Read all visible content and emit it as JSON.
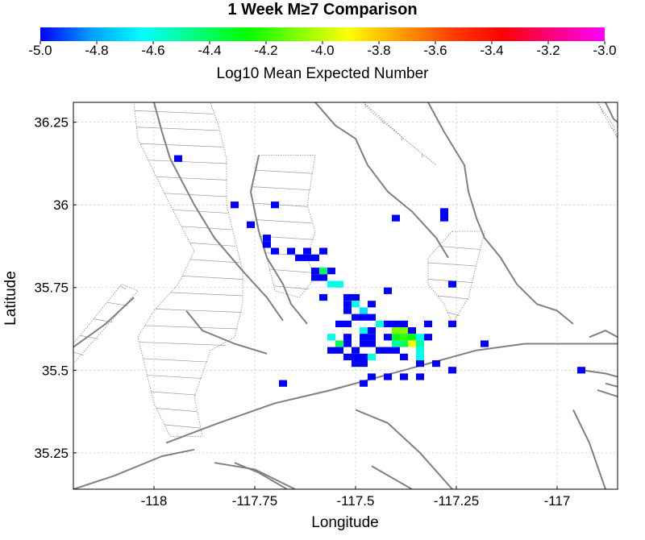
{
  "chart_data": {
    "type": "heatmap",
    "title": "1 Week M≥7 Comparison",
    "colorbar": {
      "label": "Log10 Mean Expected Number",
      "range": [
        -5.0,
        -3.0
      ],
      "ticks": [
        "-5.0",
        "-4.8",
        "-4.6",
        "-4.4",
        "-4.2",
        "-4.0",
        "-3.8",
        "-3.6",
        "-3.4",
        "-3.2",
        "-3.0"
      ],
      "colors": [
        "#0000ff",
        "#00a0ff",
        "#00ffff",
        "#00ff80",
        "#00ff00",
        "#80ff00",
        "#ffff00",
        "#ffa000",
        "#ff4000",
        "#ff0000",
        "#ff0080",
        "#ff00ff"
      ]
    },
    "xlabel": "Longitude",
    "ylabel": "Latitude",
    "xlim": [
      -118.2,
      -116.85
    ],
    "ylim": [
      35.14,
      36.31
    ],
    "xticks": [
      "-118",
      "-117.75",
      "-117.5",
      "-117.25",
      "-117"
    ],
    "yticks": [
      "36.25",
      "36",
      "35.75",
      "35.5",
      "35.25"
    ],
    "grid": true,
    "cell_size": 0.02,
    "cells": [
      {
        "lon": -117.94,
        "lat": 36.14,
        "v": -5.0
      },
      {
        "lon": -117.8,
        "lat": 36.0,
        "v": -5.0
      },
      {
        "lon": -117.7,
        "lat": 36.0,
        "v": -5.0
      },
      {
        "lon": -117.76,
        "lat": 35.94,
        "v": -5.0
      },
      {
        "lon": -117.72,
        "lat": 35.9,
        "v": -5.0
      },
      {
        "lon": -117.72,
        "lat": 35.88,
        "v": -5.0
      },
      {
        "lon": -117.7,
        "lat": 35.86,
        "v": -5.0
      },
      {
        "lon": -117.66,
        "lat": 35.86,
        "v": -5.0
      },
      {
        "lon": -117.62,
        "lat": 35.86,
        "v": -5.0
      },
      {
        "lon": -117.58,
        "lat": 35.86,
        "v": -5.0
      },
      {
        "lon": -117.62,
        "lat": 35.84,
        "v": -5.0
      },
      {
        "lon": -117.64,
        "lat": 35.84,
        "v": -5.0
      },
      {
        "lon": -117.6,
        "lat": 35.84,
        "v": -5.0
      },
      {
        "lon": -117.6,
        "lat": 35.8,
        "v": -5.0
      },
      {
        "lon": -117.56,
        "lat": 35.8,
        "v": -5.0
      },
      {
        "lon": -117.58,
        "lat": 35.8,
        "v": -4.4
      },
      {
        "lon": -117.6,
        "lat": 35.78,
        "v": -5.0
      },
      {
        "lon": -117.58,
        "lat": 35.78,
        "v": -5.0
      },
      {
        "lon": -117.56,
        "lat": 35.76,
        "v": -4.6
      },
      {
        "lon": -117.54,
        "lat": 35.76,
        "v": -4.6
      },
      {
        "lon": -117.58,
        "lat": 35.72,
        "v": -5.0
      },
      {
        "lon": -117.52,
        "lat": 35.72,
        "v": -5.0
      },
      {
        "lon": -117.5,
        "lat": 35.72,
        "v": -5.0
      },
      {
        "lon": -117.52,
        "lat": 35.7,
        "v": -5.0
      },
      {
        "lon": -117.5,
        "lat": 35.7,
        "v": -4.6
      },
      {
        "lon": -117.46,
        "lat": 35.7,
        "v": -5.0
      },
      {
        "lon": -117.42,
        "lat": 35.74,
        "v": -5.0
      },
      {
        "lon": -117.48,
        "lat": 35.68,
        "v": -4.7
      },
      {
        "lon": -117.52,
        "lat": 35.68,
        "v": -5.0
      },
      {
        "lon": -117.5,
        "lat": 35.66,
        "v": -5.0
      },
      {
        "lon": -117.48,
        "lat": 35.66,
        "v": -5.0
      },
      {
        "lon": -117.46,
        "lat": 35.66,
        "v": -5.0
      },
      {
        "lon": -117.44,
        "lat": 35.64,
        "v": -4.6
      },
      {
        "lon": -117.42,
        "lat": 35.64,
        "v": -5.0
      },
      {
        "lon": -117.4,
        "lat": 35.64,
        "v": -5.0
      },
      {
        "lon": -117.38,
        "lat": 35.64,
        "v": -5.0
      },
      {
        "lon": -117.54,
        "lat": 35.64,
        "v": -5.0
      },
      {
        "lon": -117.52,
        "lat": 35.64,
        "v": -5.0
      },
      {
        "lon": -117.48,
        "lat": 35.62,
        "v": -4.6
      },
      {
        "lon": -117.46,
        "lat": 35.62,
        "v": -5.0
      },
      {
        "lon": -117.4,
        "lat": 35.62,
        "v": -4.1
      },
      {
        "lon": -117.38,
        "lat": 35.62,
        "v": -4.1
      },
      {
        "lon": -117.36,
        "lat": 35.62,
        "v": -5.0
      },
      {
        "lon": -117.32,
        "lat": 35.64,
        "v": -5.0
      },
      {
        "lon": -117.56,
        "lat": 35.6,
        "v": -4.6
      },
      {
        "lon": -117.52,
        "lat": 35.6,
        "v": -5.0
      },
      {
        "lon": -117.48,
        "lat": 35.6,
        "v": -5.0
      },
      {
        "lon": -117.46,
        "lat": 35.6,
        "v": -5.0
      },
      {
        "lon": -117.42,
        "lat": 35.6,
        "v": -5.0
      },
      {
        "lon": -117.4,
        "lat": 35.6,
        "v": -4.3
      },
      {
        "lon": -117.38,
        "lat": 35.6,
        "v": -4.2
      },
      {
        "lon": -117.36,
        "lat": 35.6,
        "v": -4.3
      },
      {
        "lon": -117.34,
        "lat": 35.6,
        "v": -4.6
      },
      {
        "lon": -117.32,
        "lat": 35.6,
        "v": -5.0
      },
      {
        "lon": -117.54,
        "lat": 35.58,
        "v": -4.4
      },
      {
        "lon": -117.52,
        "lat": 35.58,
        "v": -5.0
      },
      {
        "lon": -117.48,
        "lat": 35.58,
        "v": -5.0
      },
      {
        "lon": -117.46,
        "lat": 35.58,
        "v": -5.0
      },
      {
        "lon": -117.4,
        "lat": 35.58,
        "v": -4.5
      },
      {
        "lon": -117.38,
        "lat": 35.58,
        "v": -4.4
      },
      {
        "lon": -117.36,
        "lat": 35.58,
        "v": -3.9
      },
      {
        "lon": -117.34,
        "lat": 35.58,
        "v": -4.5
      },
      {
        "lon": -117.56,
        "lat": 35.56,
        "v": -5.0
      },
      {
        "lon": -117.54,
        "lat": 35.56,
        "v": -5.0
      },
      {
        "lon": -117.5,
        "lat": 35.56,
        "v": -5.0
      },
      {
        "lon": -117.44,
        "lat": 35.56,
        "v": -5.0
      },
      {
        "lon": -117.42,
        "lat": 35.56,
        "v": -5.0
      },
      {
        "lon": -117.4,
        "lat": 35.56,
        "v": -5.0
      },
      {
        "lon": -117.34,
        "lat": 35.56,
        "v": -4.6
      },
      {
        "lon": -117.52,
        "lat": 35.54,
        "v": -5.0
      },
      {
        "lon": -117.5,
        "lat": 35.54,
        "v": -5.0
      },
      {
        "lon": -117.48,
        "lat": 35.54,
        "v": -5.0
      },
      {
        "lon": -117.46,
        "lat": 35.54,
        "v": -4.6
      },
      {
        "lon": -117.38,
        "lat": 35.54,
        "v": -5.0
      },
      {
        "lon": -117.34,
        "lat": 35.54,
        "v": -4.6
      },
      {
        "lon": -117.5,
        "lat": 35.52,
        "v": -5.0
      },
      {
        "lon": -117.48,
        "lat": 35.52,
        "v": -5.0
      },
      {
        "lon": -117.34,
        "lat": 35.52,
        "v": -5.0
      },
      {
        "lon": -117.3,
        "lat": 35.52,
        "v": -5.0
      },
      {
        "lon": -117.26,
        "lat": 35.5,
        "v": -5.0
      },
      {
        "lon": -117.46,
        "lat": 35.48,
        "v": -5.0
      },
      {
        "lon": -117.42,
        "lat": 35.48,
        "v": -5.0
      },
      {
        "lon": -117.38,
        "lat": 35.48,
        "v": -5.0
      },
      {
        "lon": -117.34,
        "lat": 35.48,
        "v": -5.0
      },
      {
        "lon": -117.48,
        "lat": 35.46,
        "v": -5.0
      },
      {
        "lon": -117.68,
        "lat": 35.46,
        "v": -5.0
      },
      {
        "lon": -117.4,
        "lat": 35.96,
        "v": -5.0
      },
      {
        "lon": -117.28,
        "lat": 35.98,
        "v": -5.0
      },
      {
        "lon": -117.28,
        "lat": 35.96,
        "v": -5.0
      },
      {
        "lon": -117.26,
        "lat": 35.76,
        "v": -5.0
      },
      {
        "lon": -117.26,
        "lat": 35.64,
        "v": -5.0
      },
      {
        "lon": -117.18,
        "lat": 35.58,
        "v": -5.0
      },
      {
        "lon": -116.94,
        "lat": 35.5,
        "v": -5.0
      }
    ],
    "faults": [
      [
        [
          -118.0,
          36.31
        ],
        [
          -117.98,
          36.22
        ],
        [
          -117.96,
          36.14
        ],
        [
          -117.9,
          36.0
        ],
        [
          -117.85,
          35.9
        ],
        [
          -117.78,
          35.8
        ],
        [
          -117.72,
          35.72
        ],
        [
          -117.68,
          35.65
        ]
      ],
      [
        [
          -117.74,
          36.15
        ],
        [
          -117.76,
          36.04
        ],
        [
          -117.74,
          35.92
        ],
        [
          -117.72,
          35.84
        ],
        [
          -117.68,
          35.76
        ],
        [
          -117.66,
          35.7
        ],
        [
          -117.62,
          35.64
        ]
      ],
      [
        [
          -117.6,
          36.31
        ],
        [
          -117.55,
          36.24
        ],
        [
          -117.5,
          36.2
        ],
        [
          -117.47,
          36.12
        ],
        [
          -117.42,
          36.04
        ],
        [
          -117.36,
          35.98
        ],
        [
          -117.3,
          35.9
        ],
        [
          -117.27,
          35.84
        ]
      ],
      [
        [
          -117.32,
          36.31
        ],
        [
          -117.28,
          36.22
        ],
        [
          -117.23,
          36.12
        ],
        [
          -117.22,
          36.04
        ],
        [
          -117.2,
          35.96
        ],
        [
          -117.18,
          35.9
        ],
        [
          -117.14,
          35.84
        ],
        [
          -117.1,
          35.76
        ],
        [
          -117.05,
          35.7
        ],
        [
          -117.0,
          35.68
        ],
        [
          -116.96,
          35.64
        ]
      ],
      [
        [
          -117.97,
          35.28
        ],
        [
          -117.84,
          35.34
        ],
        [
          -117.7,
          35.4
        ],
        [
          -117.56,
          35.44
        ],
        [
          -117.44,
          35.48
        ],
        [
          -117.32,
          35.52
        ],
        [
          -117.2,
          35.56
        ],
        [
          -117.08,
          35.58
        ],
        [
          -117.0,
          35.58
        ],
        [
          -116.85,
          35.58
        ]
      ],
      [
        [
          -117.92,
          35.68
        ],
        [
          -117.88,
          35.62
        ],
        [
          -117.8,
          35.58
        ],
        [
          -117.72,
          35.55
        ]
      ],
      [
        [
          -117.5,
          35.38
        ],
        [
          -117.42,
          35.34
        ],
        [
          -117.34,
          35.25
        ],
        [
          -117.26,
          35.14
        ]
      ],
      [
        [
          -117.67,
          35.14
        ],
        [
          -117.74,
          35.19
        ],
        [
          -117.8,
          35.22
        ]
      ],
      [
        [
          -117.65,
          35.14
        ],
        [
          -117.75,
          35.2
        ],
        [
          -117.85,
          35.22
        ]
      ],
      [
        [
          -118.2,
          35.14
        ],
        [
          -118.1,
          35.18
        ],
        [
          -117.98,
          35.24
        ],
        [
          -117.9,
          35.26
        ]
      ],
      [
        [
          -117.46,
          35.21
        ],
        [
          -117.36,
          35.14
        ]
      ],
      [
        [
          -116.94,
          35.5
        ],
        [
          -116.88,
          35.49
        ],
        [
          -116.85,
          35.48
        ]
      ],
      [
        [
          -116.88,
          35.46
        ],
        [
          -116.85,
          35.45
        ]
      ],
      [
        [
          -116.9,
          35.44
        ],
        [
          -116.85,
          35.42
        ]
      ],
      [
        [
          -116.96,
          35.38
        ],
        [
          -116.92,
          35.28
        ],
        [
          -116.88,
          35.14
        ]
      ],
      [
        [
          -116.92,
          35.6
        ],
        [
          -116.88,
          35.62
        ],
        [
          -116.85,
          35.6
        ]
      ],
      [
        [
          -116.88,
          36.31
        ],
        [
          -116.86,
          36.26
        ],
        [
          -116.85,
          36.25
        ]
      ],
      [
        [
          -118.2,
          35.57
        ],
        [
          -118.12,
          35.64
        ],
        [
          -118.05,
          35.72
        ]
      ]
    ],
    "fault_zones": [
      [
        [
          -118.05,
          36.31
        ],
        [
          -117.99,
          36.31
        ],
        [
          -117.92,
          36.31
        ],
        [
          -117.86,
          36.31
        ],
        [
          -117.84,
          36.24
        ],
        [
          -117.82,
          36.14
        ],
        [
          -117.82,
          36.0
        ],
        [
          -117.8,
          35.9
        ],
        [
          -117.78,
          35.8
        ],
        [
          -117.78,
          35.7
        ],
        [
          -117.8,
          35.6
        ],
        [
          -117.86,
          35.56
        ],
        [
          -117.9,
          35.42
        ],
        [
          -117.88,
          35.3
        ],
        [
          -117.96,
          35.3
        ],
        [
          -118.0,
          35.4
        ],
        [
          -118.02,
          35.5
        ],
        [
          -118.04,
          35.6
        ],
        [
          -118.0,
          35.68
        ],
        [
          -117.94,
          35.76
        ],
        [
          -117.9,
          35.86
        ],
        [
          -117.96,
          36.0
        ],
        [
          -118.0,
          36.1
        ],
        [
          -118.04,
          36.2
        ]
      ],
      [
        [
          -117.74,
          36.15
        ],
        [
          -117.6,
          36.15
        ],
        [
          -117.62,
          36.0
        ],
        [
          -117.6,
          35.92
        ],
        [
          -117.62,
          35.84
        ],
        [
          -117.6,
          35.78
        ],
        [
          -117.64,
          35.72
        ],
        [
          -117.7,
          35.74
        ],
        [
          -117.72,
          35.84
        ],
        [
          -117.74,
          35.92
        ],
        [
          -117.76,
          36.04
        ]
      ],
      [
        [
          -117.26,
          35.92
        ],
        [
          -117.18,
          35.92
        ],
        [
          -117.2,
          35.82
        ],
        [
          -117.22,
          35.72
        ],
        [
          -117.26,
          35.64
        ],
        [
          -117.28,
          35.7
        ],
        [
          -117.32,
          35.76
        ],
        [
          -117.32,
          35.84
        ]
      ],
      [
        [
          -118.2,
          35.58
        ],
        [
          -118.08,
          35.76
        ],
        [
          -118.04,
          35.74
        ],
        [
          -118.2,
          35.52
        ]
      ],
      [
        [
          -117.48,
          36.31
        ],
        [
          -117.38,
          36.2
        ],
        [
          -117.3,
          36.12
        ],
        [
          -117.4,
          36.22
        ],
        [
          -117.46,
          36.28
        ]
      ],
      [
        [
          -116.9,
          36.31
        ],
        [
          -116.86,
          36.24
        ],
        [
          -116.85,
          36.2
        ]
      ]
    ]
  }
}
